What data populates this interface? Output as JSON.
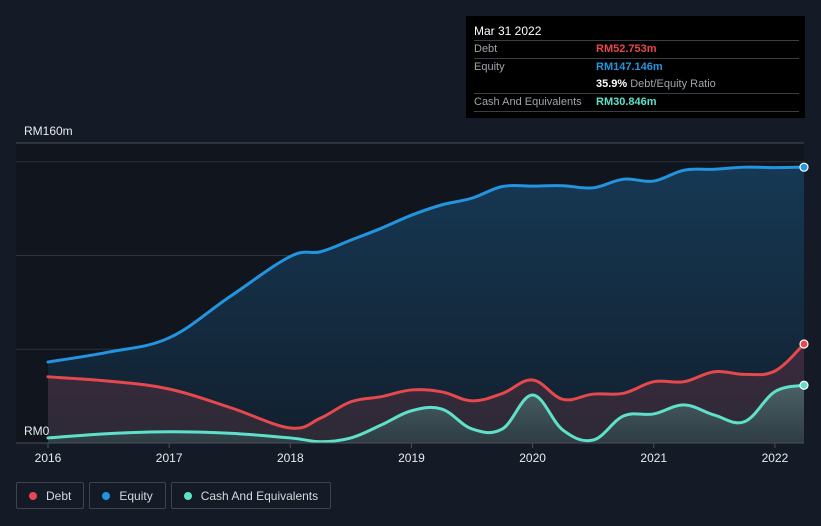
{
  "tooltip": {
    "date": "Mar 31 2022",
    "rows": [
      {
        "label": "Debt",
        "value": "RM52.753m",
        "color": "#e5484d"
      },
      {
        "label": "Equity",
        "value": "RM147.146m",
        "color": "#2394df"
      },
      {
        "ratio_value": "35.9%",
        "ratio_label": "Debt/Equity Ratio"
      },
      {
        "label": "Cash And Equivalents",
        "value": "RM30.846m",
        "color": "#5fe0c8"
      }
    ]
  },
  "legend": [
    {
      "label": "Debt",
      "color": "#e5484d"
    },
    {
      "label": "Equity",
      "color": "#2394df"
    },
    {
      "label": "Cash And Equivalents",
      "color": "#5fe0c8"
    }
  ],
  "chart_data": {
    "type": "area",
    "title": "",
    "xlabel": "",
    "ylabel": "",
    "unit": "RM m",
    "y_top_label": "RM160m",
    "y_bottom_label": "RM0",
    "ylim": [
      0,
      160
    ],
    "xlim": [
      2016.0,
      2022.24
    ],
    "gridlines": [
      50,
      100,
      150
    ],
    "x_ticks": [
      "2016",
      "2017",
      "2018",
      "2019",
      "2020",
      "2021",
      "2022"
    ],
    "x": [
      2016.0,
      2016.5,
      2017.0,
      2017.5,
      2018.0,
      2018.25,
      2018.5,
      2018.75,
      2019.0,
      2019.25,
      2019.5,
      2019.75,
      2020.0,
      2020.25,
      2020.5,
      2020.75,
      2021.0,
      2021.25,
      2021.5,
      2021.75,
      2022.0,
      2022.24
    ],
    "series": [
      {
        "name": "Equity",
        "color": "#2394df",
        "values": [
          43.2,
          48.5,
          56.1,
          78.0,
          99.5,
          102.0,
          108.2,
          114.5,
          121.5,
          127.0,
          130.6,
          136.8,
          137.0,
          137.2,
          136.1,
          140.7,
          139.7,
          145.5,
          146.0,
          147.1,
          146.9,
          147.1
        ]
      },
      {
        "name": "Debt",
        "color": "#e5484d",
        "values": [
          35.3,
          33.0,
          28.8,
          19.0,
          8.0,
          13.3,
          22.0,
          24.7,
          28.3,
          27.3,
          22.5,
          26.4,
          33.6,
          23.3,
          26.1,
          26.5,
          32.7,
          32.7,
          38.0,
          36.6,
          38.4,
          52.8
        ]
      },
      {
        "name": "Cash And Equivalents",
        "color": "#5fe0c8",
        "values": [
          2.7,
          5.0,
          6.0,
          5.2,
          2.7,
          0.7,
          2.7,
          9.6,
          17.2,
          18.1,
          7.5,
          7.5,
          25.6,
          6.9,
          1.6,
          14.4,
          15.5,
          20.3,
          14.9,
          11.4,
          27.4,
          30.8
        ]
      }
    ]
  }
}
